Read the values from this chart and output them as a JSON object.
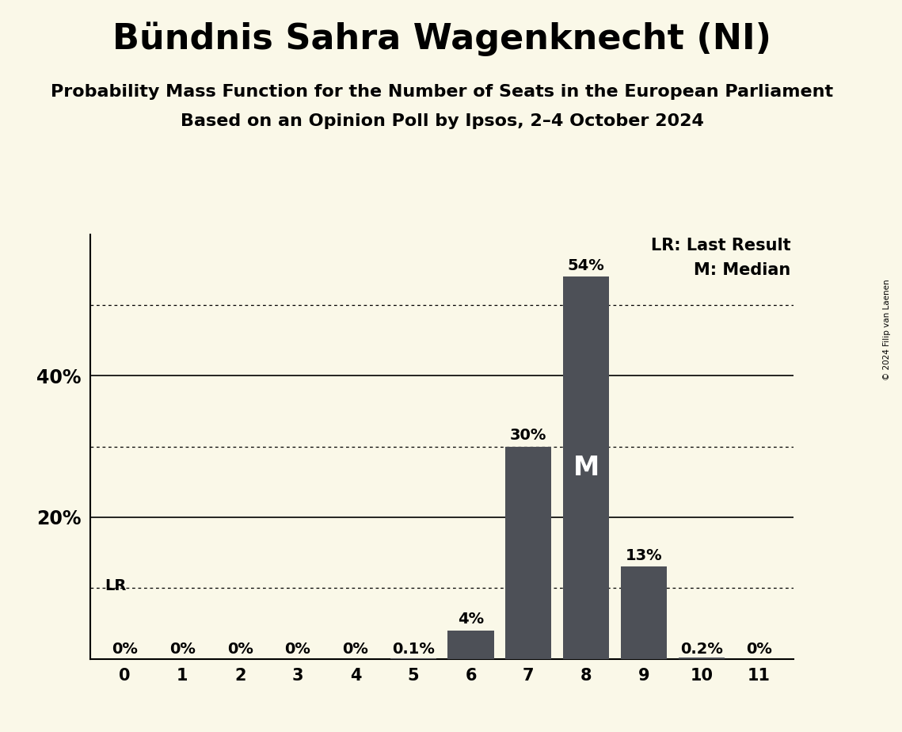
{
  "title": "Bündnis Sahra Wagenknecht (NI)",
  "subtitle1": "Probability Mass Function for the Number of Seats in the European Parliament",
  "subtitle2": "Based on an Opinion Poll by Ipsos, 2–4 October 2024",
  "copyright": "© 2024 Filip van Laenen",
  "categories": [
    0,
    1,
    2,
    3,
    4,
    5,
    6,
    7,
    8,
    9,
    10,
    11
  ],
  "values": [
    0.0,
    0.0,
    0.0,
    0.0,
    0.0,
    0.001,
    0.04,
    0.3,
    0.54,
    0.13,
    0.002,
    0.0
  ],
  "bar_color": "#4d5057",
  "background_color": "#faf8e8",
  "label_texts": [
    "0%",
    "0%",
    "0%",
    "0%",
    "0%",
    "0.1%",
    "4%",
    "30%",
    "54%",
    "13%",
    "0.2%",
    "0%"
  ],
  "median_bar": 8,
  "median_label": "M",
  "lr_bar": 0,
  "lr_label": "LR",
  "ylim": [
    0,
    0.6
  ],
  "yticks": [
    0.0,
    0.1,
    0.2,
    0.3,
    0.4,
    0.5
  ],
  "solid_gridlines": [
    0.0,
    0.2,
    0.4
  ],
  "dotted_gridlines": [
    0.1,
    0.3,
    0.5
  ],
  "legend_lr": "LR: Last Result",
  "legend_m": "M: Median",
  "title_fontsize": 32,
  "subtitle_fontsize": 16,
  "bar_label_fontsize": 14,
  "axis_tick_fontsize": 15,
  "ytick_fontsize": 17,
  "legend_fontsize": 15,
  "median_label_fontsize": 24,
  "lr_label_fontsize": 14
}
